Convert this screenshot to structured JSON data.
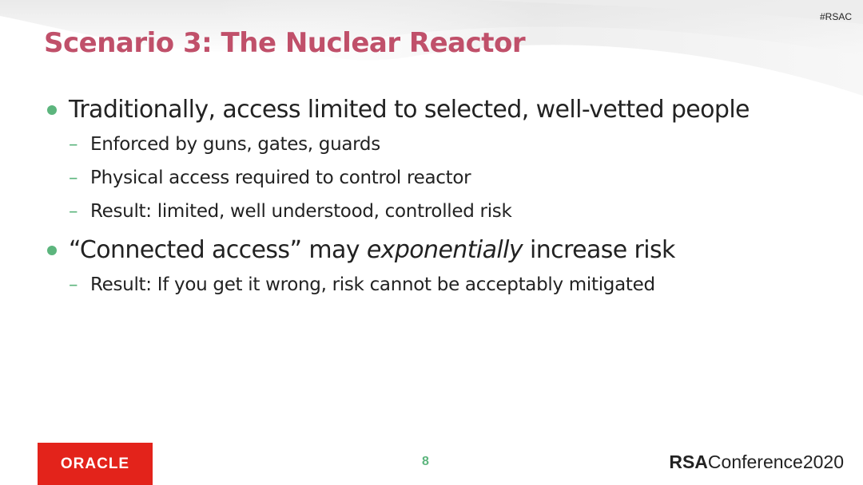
{
  "header": {
    "hashtag": "#RSAC",
    "title": "Scenario 3: The Nuclear Reactor"
  },
  "bullets": [
    {
      "text": "Traditionally, access limited to selected, well-vetted people",
      "subs": [
        "Enforced by guns, gates, guards",
        "Physical access required to control reactor",
        "Result: limited, well understood, controlled risk"
      ]
    },
    {
      "text_before": "“Connected access” may ",
      "text_emphasis": "exponentially",
      "text_after": " increase risk",
      "subs": [
        "Result: If you get it wrong, risk cannot be acceptably mitigated"
      ]
    }
  ],
  "footer": {
    "oracle_logo": "ORACLE",
    "page_number": "8",
    "rsa_brand": "RSA",
    "rsa_event": "Conference2020"
  },
  "colors": {
    "title": "#c0506a",
    "accent": "#5cb57d",
    "oracle_red": "#e3231b"
  },
  "icons": {
    "bullet": "green-dot",
    "sub_bullet": "en-dash"
  }
}
